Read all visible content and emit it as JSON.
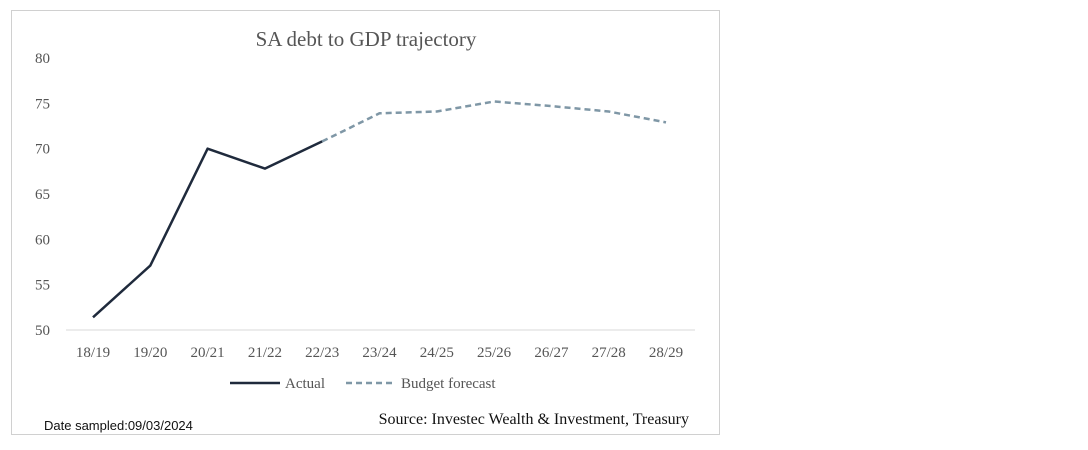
{
  "chart_data": {
    "type": "line",
    "title": "SA debt to GDP trajectory",
    "xlabel": "",
    "ylabel": "",
    "categories": [
      "18/19",
      "19/20",
      "20/21",
      "21/22",
      "22/23",
      "23/24",
      "24/25",
      "25/26",
      "26/27",
      "27/28",
      "28/29"
    ],
    "ylim": [
      50,
      80
    ],
    "yticks": [
      50,
      55,
      60,
      65,
      70,
      75,
      80
    ],
    "grid": false,
    "legend_position": "bottom",
    "series": [
      {
        "name": "Actual",
        "color": "#1f2a3c",
        "style": "solid",
        "values": [
          51.4,
          57.1,
          70.0,
          67.8,
          70.8,
          null,
          null,
          null,
          null,
          null,
          null
        ]
      },
      {
        "name": "Budget forecast",
        "color": "#7f97a6",
        "style": "dashed",
        "values": [
          null,
          null,
          null,
          null,
          70.8,
          73.9,
          74.1,
          75.2,
          74.7,
          74.1,
          72.9
        ]
      }
    ]
  },
  "footer": {
    "date_sampled": "Date sampled:09/03/2024",
    "source": "Source: Investec Wealth & Investment, Treasury"
  }
}
